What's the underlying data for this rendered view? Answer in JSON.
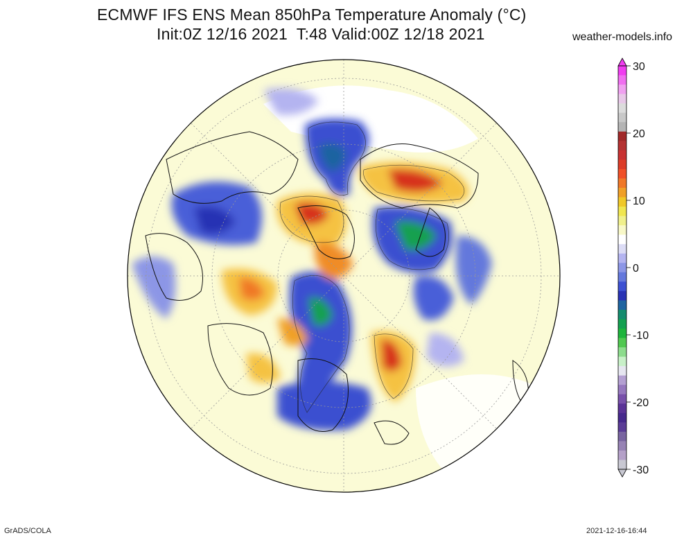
{
  "title": {
    "line1": "ECMWF IFS ENS Mean 850hPa Temperature Anomaly (°C)",
    "line2": "Init:0Z 12/16 2021  T:48 Valid:00Z 12/18 2021"
  },
  "source": "weather-models.info",
  "footer": {
    "software": "GrADS/COLA",
    "generated": "2021-12-16-16:44"
  },
  "colorbar": {
    "labels": [
      "30",
      "20",
      "10",
      "0",
      "-10",
      "-20",
      "-30"
    ],
    "colors_top_to_bottom": [
      "#f03cf0",
      "#f06ef0",
      "#f0a0f0",
      "#e8c8e8",
      "#dcdcdc",
      "#c8c8c8",
      "#b4b4b4",
      "#a02828",
      "#b43232",
      "#c83232",
      "#dc3c28",
      "#f05028",
      "#f07828",
      "#f0a028",
      "#f0c828",
      "#f0e650",
      "#f0f08c",
      "#f8f8c8",
      "#ffffff",
      "#dcdcf5",
      "#b4b4f0",
      "#8c96e6",
      "#6478dc",
      "#3c50d2",
      "#2832b4",
      "#1e64a0",
      "#148c6e",
      "#14a050",
      "#1eb43c",
      "#50c850",
      "#8cdc8c",
      "#c8f0c8",
      "#e6e6f0",
      "#b4a0d2",
      "#9678be",
      "#7850aa",
      "#5a3296",
      "#46288c",
      "#5a3c96",
      "#7864a0",
      "#9682b4",
      "#b4a0c8",
      "#c8c8d2"
    ]
  },
  "legend_colors": {
    "warm_strong": "#d7301f",
    "warm": "#f5a623",
    "warm_light": "#f7f08a",
    "neutral": "#fbfbd6",
    "cool_light": "#c6cef2",
    "cool": "#3a4fd0",
    "cold": "#1f9a5c"
  }
}
